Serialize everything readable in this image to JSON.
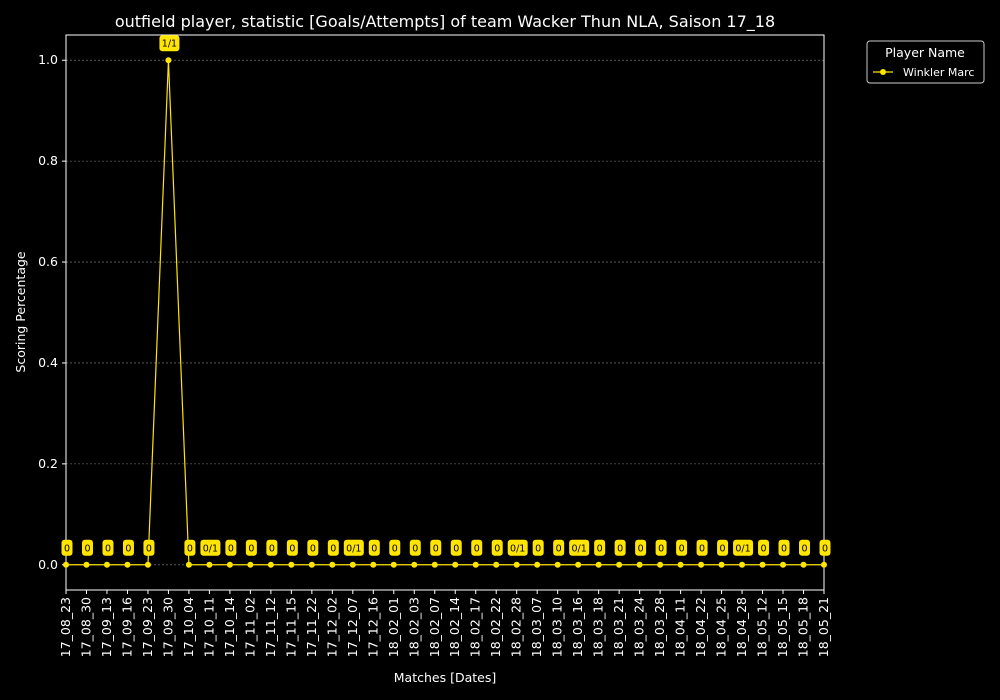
{
  "chart_data": {
    "type": "line",
    "title": "outfield player, statistic [Goals/Attempts] of team Wacker Thun NLA, Saison 17_18",
    "xlabel": "Matches [Dates]",
    "ylabel": "Scoring Percentage",
    "ylim": [
      -0.05,
      1.05
    ],
    "yticks": [
      0.0,
      0.2,
      0.4,
      0.6,
      0.8,
      1.0
    ],
    "grid": true,
    "legend": {
      "title": "Player Name",
      "position": "outside-top-right"
    },
    "categories": [
      "17_08_23",
      "17_08_30",
      "17_09_13",
      "17_09_16",
      "17_09_23",
      "17_09_30",
      "17_10_04",
      "17_10_11",
      "17_10_14",
      "17_11_02",
      "17_11_12",
      "17_11_15",
      "17_11_22",
      "17_12_02",
      "17_12_07",
      "17_12_16",
      "18_02_01",
      "18_02_03",
      "18_02_07",
      "18_02_14",
      "18_02_17",
      "18_02_22",
      "18_02_28",
      "18_03_07",
      "18_03_10",
      "18_03_16",
      "18_03_18",
      "18_03_21",
      "18_03_24",
      "18_03_28",
      "18_04_11",
      "18_04_22",
      "18_04_25",
      "18_04_28",
      "18_05_12",
      "18_05_15",
      "18_05_18",
      "18_05_21"
    ],
    "series": [
      {
        "name": "Winkler Marc",
        "color": "#ffe500",
        "values": [
          0,
          0,
          0,
          0,
          0,
          1,
          0,
          0,
          0,
          0,
          0,
          0,
          0,
          0,
          0,
          0,
          0,
          0,
          0,
          0,
          0,
          0,
          0,
          0,
          0,
          0,
          0,
          0,
          0,
          0,
          0,
          0,
          0,
          0,
          0,
          0,
          0,
          0
        ],
        "labels": [
          "0",
          "0",
          "0",
          "0",
          "0",
          "1/1",
          "0",
          "0/1",
          "0",
          "0",
          "0",
          "0",
          "0",
          "0",
          "0/1",
          "0",
          "0",
          "0",
          "0",
          "0",
          "0",
          "0",
          "0/1",
          "0",
          "0",
          "0/1",
          "0",
          "0",
          "0",
          "0",
          "0",
          "0",
          "0",
          "0/1",
          "0",
          "0",
          "0",
          "0"
        ]
      }
    ]
  }
}
